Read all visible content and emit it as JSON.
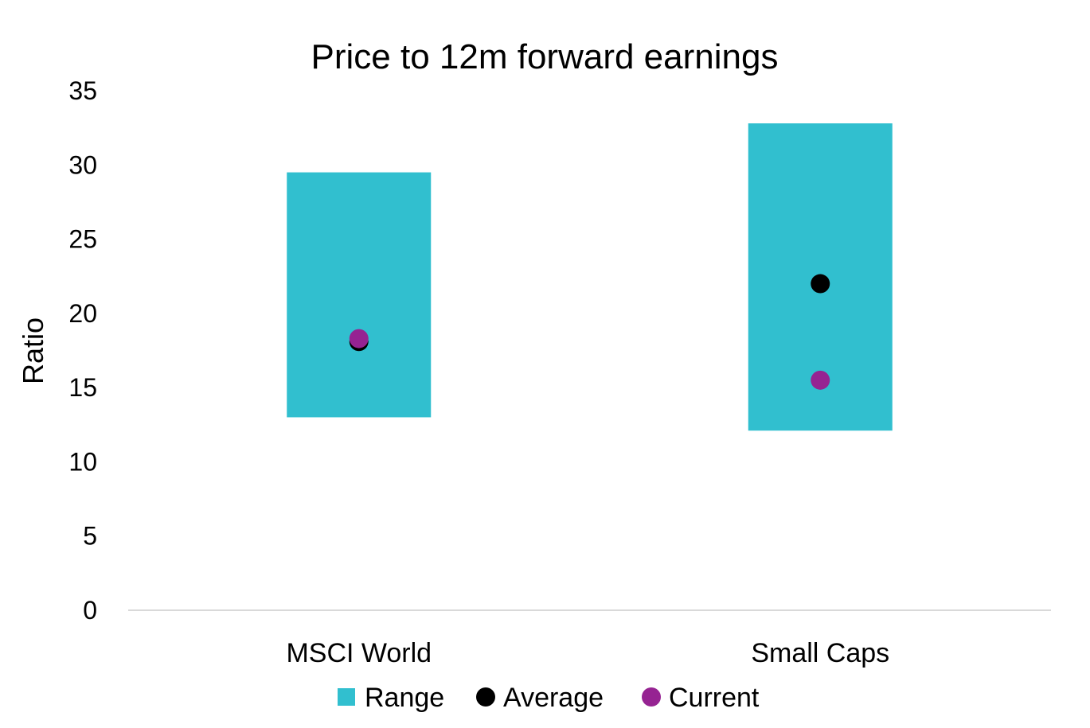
{
  "chart_data": {
    "type": "range",
    "title": "Price to 12m forward earnings",
    "xlabel": "",
    "ylabel": "Ratio",
    "ylim": [
      0,
      35
    ],
    "yticks": [
      0,
      5,
      10,
      15,
      20,
      25,
      30,
      35
    ],
    "categories": [
      "MSCI World",
      "Small Caps"
    ],
    "series": [
      {
        "name": "Range",
        "kind": "range",
        "color": "#31BFCF",
        "low": [
          13.0,
          12.1
        ],
        "high": [
          29.5,
          32.8
        ]
      },
      {
        "name": "Average",
        "kind": "point",
        "color": "#000000",
        "values": [
          18.1,
          22.0
        ]
      },
      {
        "name": "Current",
        "kind": "point",
        "color": "#962392",
        "values": [
          18.3,
          15.5
        ]
      }
    ],
    "legend": "bottom",
    "grid": false,
    "axis_line_color": "#D9D9D9"
  }
}
